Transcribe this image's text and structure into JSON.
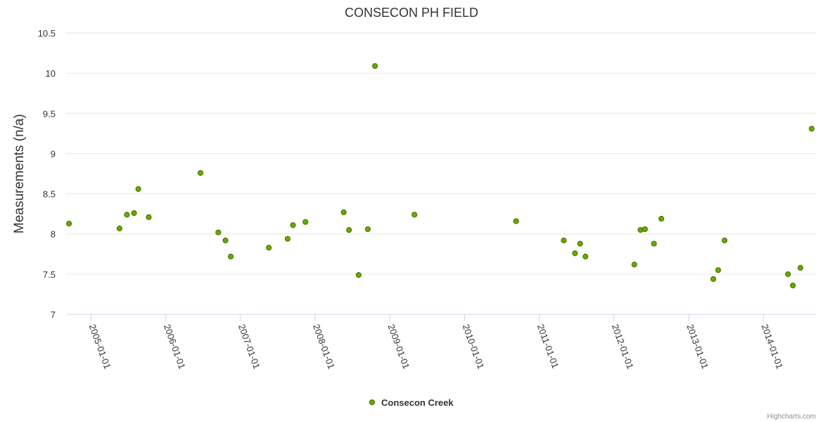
{
  "chart_data": {
    "type": "scatter",
    "title": "CONSECON PH FIELD",
    "ylabel": "Measurements (n/a)",
    "xlabel": "",
    "ylim": [
      7,
      10.5
    ],
    "yticks": [
      "7",
      "7.5",
      "8",
      "8.5",
      "9",
      "9.5",
      "10",
      "10.5"
    ],
    "xlim": [
      "2004-09-01",
      "2014-09-15"
    ],
    "xticks": [
      "2005-01-01",
      "2006-01-01",
      "2007-01-01",
      "2008-01-01",
      "2009-01-01",
      "2010-01-01",
      "2011-01-01",
      "2012-01-01",
      "2013-01-01",
      "2014-01-01"
    ],
    "grid": true,
    "legend": "bottom-center",
    "series": [
      {
        "name": "Consecon Creek",
        "color": "#6aaa00",
        "points": [
          {
            "x": "2004-09-15",
            "y": 8.13
          },
          {
            "x": "2005-05-20",
            "y": 8.07
          },
          {
            "x": "2005-06-25",
            "y": 8.24
          },
          {
            "x": "2005-07-30",
            "y": 8.26
          },
          {
            "x": "2005-08-20",
            "y": 8.56
          },
          {
            "x": "2005-10-10",
            "y": 8.21
          },
          {
            "x": "2006-06-20",
            "y": 8.76
          },
          {
            "x": "2006-09-15",
            "y": 8.02
          },
          {
            "x": "2006-10-20",
            "y": 7.92
          },
          {
            "x": "2006-11-15",
            "y": 7.72
          },
          {
            "x": "2007-05-20",
            "y": 7.83
          },
          {
            "x": "2007-08-20",
            "y": 7.94
          },
          {
            "x": "2007-09-15",
            "y": 8.11
          },
          {
            "x": "2007-11-15",
            "y": 8.15
          },
          {
            "x": "2008-05-20",
            "y": 8.27
          },
          {
            "x": "2008-06-15",
            "y": 8.05
          },
          {
            "x": "2008-08-01",
            "y": 7.49
          },
          {
            "x": "2008-09-15",
            "y": 8.06
          },
          {
            "x": "2008-10-20",
            "y": 10.09
          },
          {
            "x": "2009-05-01",
            "y": 8.24
          },
          {
            "x": "2010-09-10",
            "y": 8.16
          },
          {
            "x": "2011-05-01",
            "y": 7.92
          },
          {
            "x": "2011-06-25",
            "y": 7.76
          },
          {
            "x": "2011-07-20",
            "y": 7.88
          },
          {
            "x": "2011-08-15",
            "y": 7.72
          },
          {
            "x": "2012-04-10",
            "y": 7.62
          },
          {
            "x": "2012-05-10",
            "y": 8.05
          },
          {
            "x": "2012-06-01",
            "y": 8.06
          },
          {
            "x": "2012-07-15",
            "y": 7.88
          },
          {
            "x": "2012-08-20",
            "y": 8.19
          },
          {
            "x": "2013-05-01",
            "y": 7.44
          },
          {
            "x": "2013-05-25",
            "y": 7.55
          },
          {
            "x": "2013-06-25",
            "y": 7.92
          },
          {
            "x": "2014-05-01",
            "y": 7.5
          },
          {
            "x": "2014-05-25",
            "y": 7.36
          },
          {
            "x": "2014-07-01",
            "y": 7.58
          },
          {
            "x": "2014-08-25",
            "y": 9.31
          }
        ]
      }
    ]
  },
  "credits": "Highcharts.com"
}
